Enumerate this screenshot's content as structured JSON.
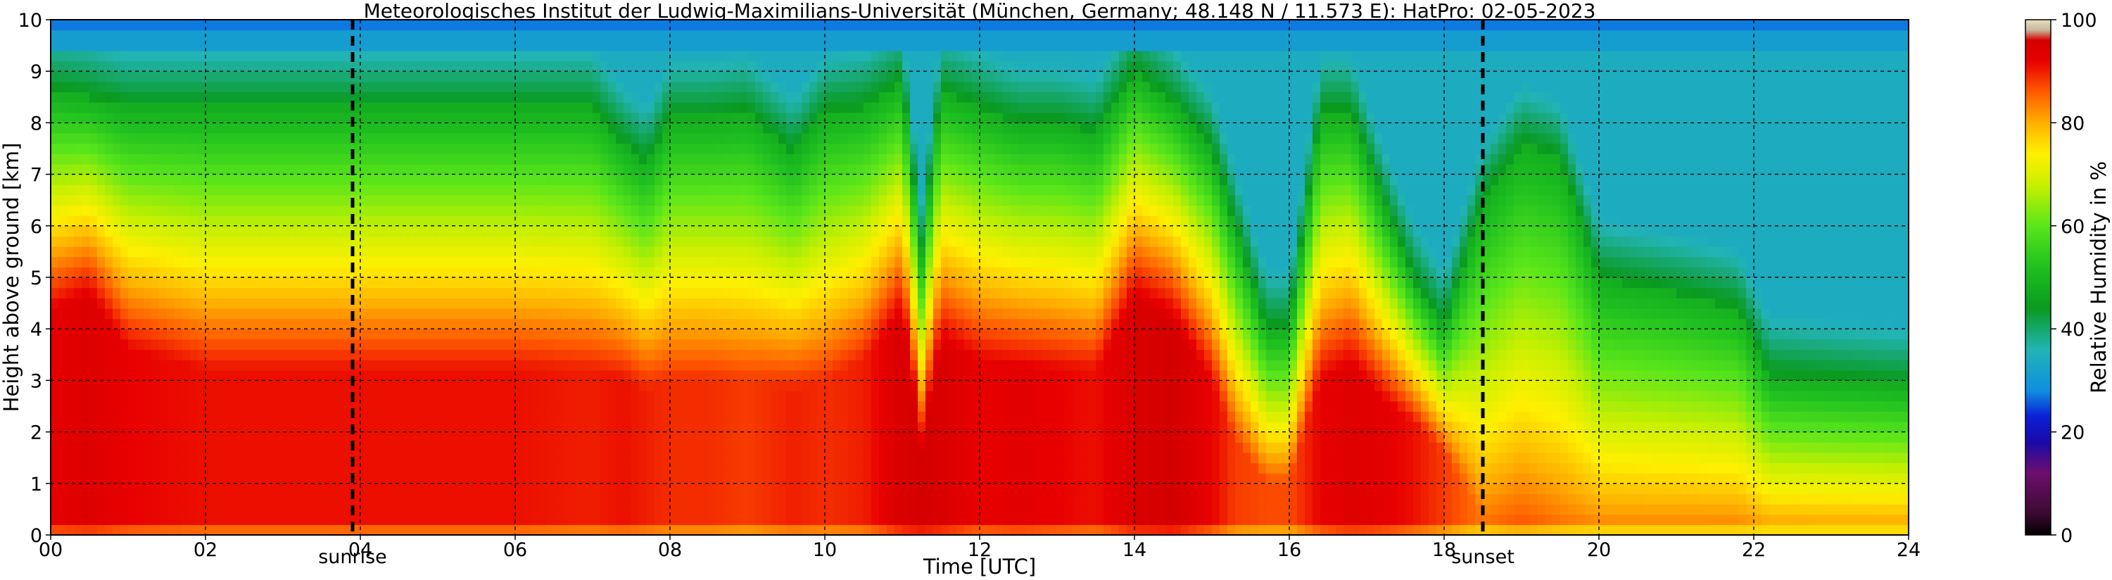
{
  "chart_data": {
    "type": "heatmap",
    "title": "Meteorologisches Institut der Ludwig-Maximilians-Universität (München, Germany; 48.148 N / 11.573 E):    HatPro: 02-05-2023",
    "xlabel": "Time [UTC]",
    "ylabel": "Height above ground [km]",
    "xlim": [
      0,
      24
    ],
    "ylim": [
      0,
      10
    ],
    "x_ticks": [
      0,
      2,
      4,
      6,
      8,
      10,
      12,
      14,
      16,
      18,
      20,
      22,
      24
    ],
    "x_tick_labels": [
      "00",
      "02",
      "04",
      "06",
      "08",
      "10",
      "12",
      "14",
      "16",
      "18",
      "20",
      "22",
      "24"
    ],
    "y_ticks": [
      0,
      1,
      2,
      3,
      4,
      5,
      6,
      7,
      8,
      9,
      10
    ],
    "y_tick_labels": [
      "0",
      "1",
      "2",
      "3",
      "4",
      "5",
      "6",
      "7",
      "8",
      "9",
      "10"
    ],
    "grid": true,
    "events": [
      {
        "label": "sunrise",
        "x": 3.9
      },
      {
        "label": "sunset",
        "x": 18.5
      }
    ],
    "colorbar": {
      "label": "Relative Humidity in %",
      "range": [
        0,
        100
      ],
      "ticks": [
        0,
        20,
        40,
        60,
        80,
        100
      ],
      "tick_labels": [
        "0",
        "20",
        "40",
        "60",
        "80",
        "100"
      ],
      "colors": [
        {
          "value": 0,
          "color": "#000000"
        },
        {
          "value": 4,
          "color": "#3a0a30"
        },
        {
          "value": 12,
          "color": "#6d0e6d"
        },
        {
          "value": 18,
          "color": "#1a0aa8"
        },
        {
          "value": 23,
          "color": "#0a1fd6"
        },
        {
          "value": 28,
          "color": "#0f8fe0"
        },
        {
          "value": 36,
          "color": "#22b4b4"
        },
        {
          "value": 44,
          "color": "#0a9a20"
        },
        {
          "value": 52,
          "color": "#1fc020"
        },
        {
          "value": 60,
          "color": "#5ae61a"
        },
        {
          "value": 68,
          "color": "#c8f000"
        },
        {
          "value": 74,
          "color": "#fff000"
        },
        {
          "value": 80,
          "color": "#ffb000"
        },
        {
          "value": 86,
          "color": "#ff5a00"
        },
        {
          "value": 92,
          "color": "#e80000"
        },
        {
          "value": 96,
          "color": "#d40000"
        },
        {
          "value": 98,
          "color": "#c8b89a"
        },
        {
          "value": 100,
          "color": "#e6e0c0"
        }
      ]
    },
    "field": {
      "time_hours": [
        0,
        0.5,
        1,
        2,
        3,
        4,
        5,
        6,
        7,
        7.4,
        7.7,
        8,
        8.5,
        9,
        9.6,
        10,
        10.5,
        11,
        11.25,
        11.5,
        12,
        12.5,
        13,
        13.5,
        14,
        14.5,
        15,
        15.3,
        15.7,
        16,
        16.4,
        16.8,
        17.2,
        17.6,
        18,
        18.5,
        19,
        19.5,
        20,
        21,
        21.8,
        22.2,
        23,
        24
      ],
      "surface_rh": [
        93,
        94,
        92,
        91,
        91,
        91,
        91,
        91,
        90,
        91,
        90,
        89,
        89,
        88,
        90,
        89,
        90,
        95,
        96,
        95,
        92,
        93,
        92,
        91,
        95,
        96,
        92,
        88,
        87,
        87,
        92,
        94,
        93,
        91,
        88,
        84,
        86,
        84,
        83,
        83,
        83,
        82,
        82,
        82
      ],
      "high_rh_top_km": [
        4.3,
        4.6,
        3.6,
        3.2,
        3.2,
        3.2,
        3.2,
        3.2,
        3.2,
        3.0,
        2.8,
        3.0,
        3.0,
        3.0,
        2.8,
        3.0,
        3.4,
        4.2,
        1.6,
        3.6,
        3.4,
        3.2,
        3.2,
        3.2,
        4.5,
        4.0,
        3.0,
        1.8,
        1.0,
        1.0,
        3.0,
        3.2,
        2.6,
        2.2,
        1.6,
        0.3,
        0.3,
        0.3,
        0.2,
        0.2,
        0.2,
        0.1,
        0.1,
        0.1
      ],
      "moist_top_km": [
        8.6,
        8.5,
        8.3,
        8.3,
        8.3,
        8.3,
        8.3,
        8.3,
        8.3,
        7.6,
        7.2,
        8.1,
        8.1,
        8.2,
        7.4,
        8.2,
        8.3,
        8.8,
        5.5,
        8.6,
        8.3,
        8.0,
        8.0,
        7.8,
        9.0,
        8.4,
        7.5,
        6.0,
        4.0,
        4.0,
        8.2,
        8.2,
        6.5,
        5.0,
        4.0,
        6.5,
        7.6,
        7.3,
        5.0,
        4.7,
        4.4,
        3.1,
        3.0,
        2.9
      ]
    }
  }
}
